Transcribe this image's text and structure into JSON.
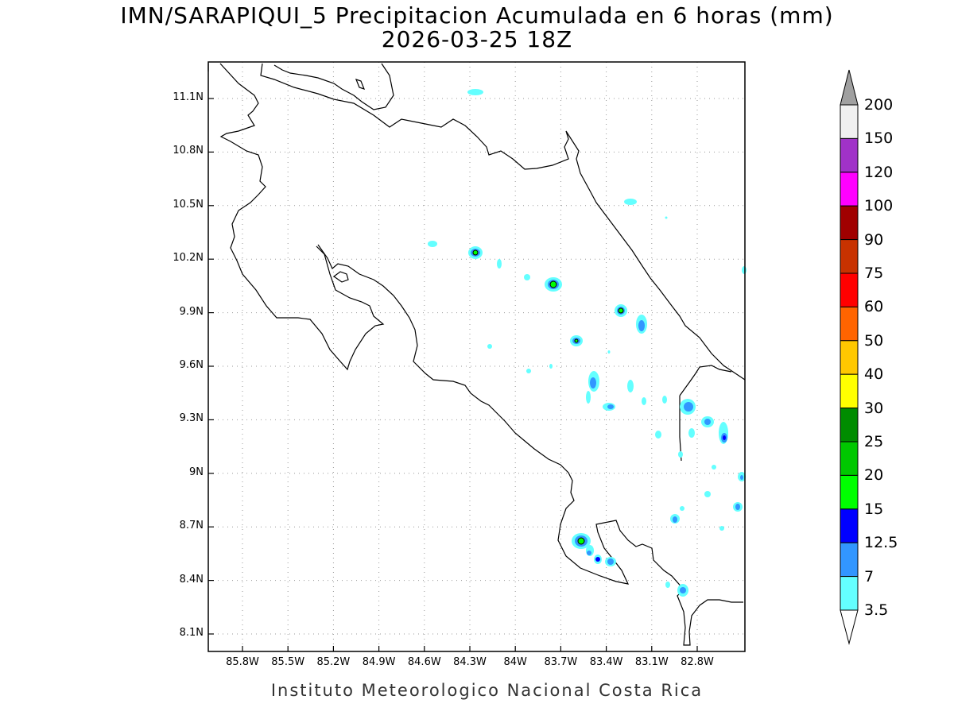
{
  "title": {
    "line1": "IMN/SARAPIQUI_5 Precipitacion Acumulada en 6 horas (mm)",
    "line2": "2026-03-25 18Z"
  },
  "axes": {
    "lat_labels": [
      "11.1N",
      "10.8N",
      "10.5N",
      "10.2N",
      "9.9N",
      "9.6N",
      "9.3N",
      "9N",
      "8.7N",
      "8.4N",
      "8.1N"
    ],
    "lon_labels": [
      "85.8W",
      "85.5W",
      "85.2W",
      "84.9W",
      "84.6W",
      "84.3W",
      "84W",
      "83.7W",
      "83.4W",
      "83.1W",
      "82.8W"
    ]
  },
  "legend": {
    "labels": [
      "200",
      "150",
      "120",
      "100",
      "90",
      "75",
      "60",
      "50",
      "40",
      "30",
      "25",
      "20",
      "15",
      "12.5",
      "7",
      "3.5"
    ],
    "colors": [
      "#a0a0a0",
      "#f0f0f0",
      "#a032c8",
      "#ff00ff",
      "#a00000",
      "#c83200",
      "#ff0000",
      "#ff6400",
      "#ffc800",
      "#ffff00",
      "#008c00",
      "#00c800",
      "#00ff00",
      "#0000ff",
      "#3296ff",
      "#64ffff",
      "#ffffff"
    ]
  },
  "footer": "Instituto Meteorologico Nacional Costa Rica"
}
